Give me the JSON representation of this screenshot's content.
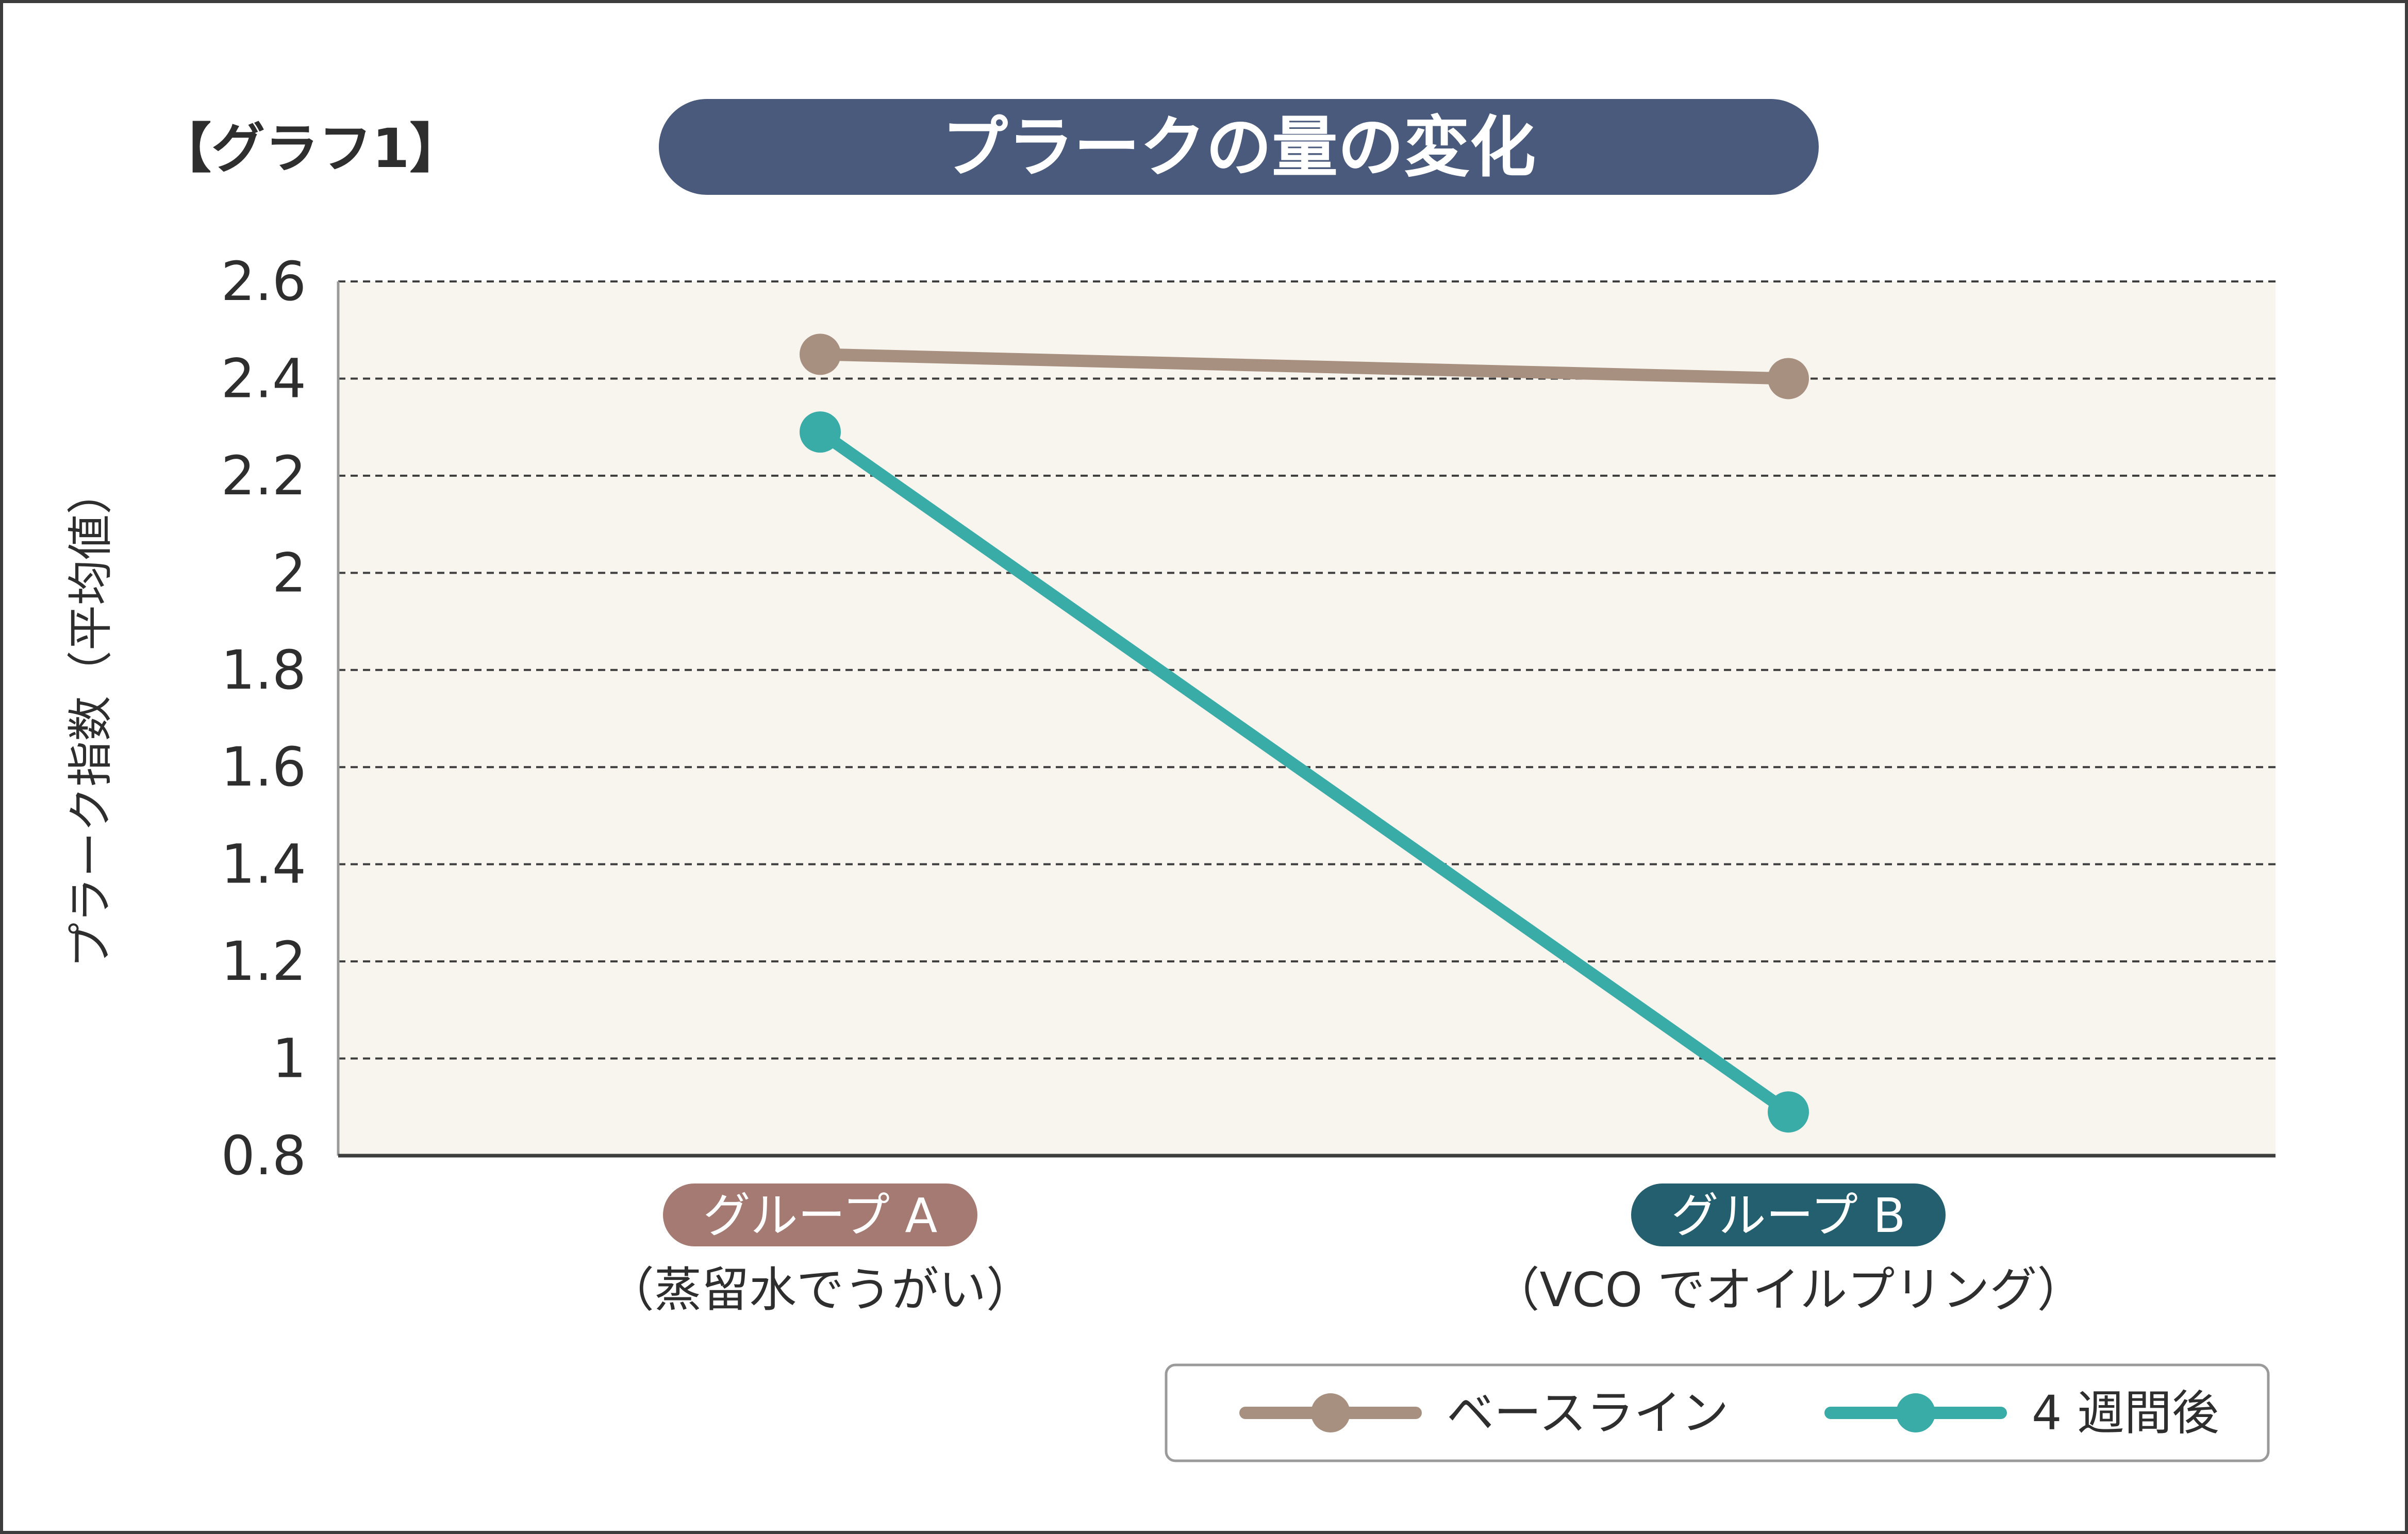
{
  "corner_label": "【グラフ1】",
  "colors": {
    "title_bg": "#4a5a7d",
    "plot_bg": "#f8f5ef",
    "baseline": "#a89080",
    "after": "#3aaca8",
    "badge_a": "#a57a72",
    "badge_b": "#235f6e"
  },
  "chart_data": {
    "type": "line",
    "title": "プラークの量の変化",
    "ylabel": "プラーク指数（平均値）",
    "xlabel": "",
    "ylim": [
      0.8,
      2.6
    ],
    "yticks": [
      "2.6",
      "2.4",
      "2.2",
      "2",
      "1.8",
      "1.6",
      "1.4",
      "1.2",
      "1",
      "0.8"
    ],
    "grid": true,
    "legend_position": "bottom-right",
    "categories": [
      {
        "label": "グループ A",
        "sublabel": "（蒸留水でうがい）"
      },
      {
        "label": "グループ B",
        "sublabel": "（VCO でオイルプリング）"
      }
    ],
    "series": [
      {
        "name": "ベースライン",
        "values": [
          2.45,
          2.4
        ]
      },
      {
        "name": "4 週間後",
        "values": [
          2.29,
          0.89
        ]
      }
    ]
  }
}
